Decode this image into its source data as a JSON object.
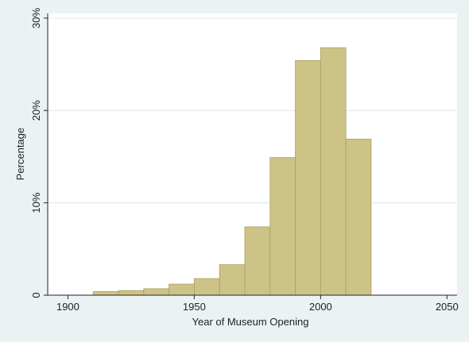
{
  "chart_data": {
    "type": "histogram",
    "xlabel": "Year of Museum Opening",
    "ylabel": "Percentage",
    "bins": [
      1910,
      1920,
      1930,
      1940,
      1950,
      1960,
      1970,
      1980,
      1990,
      2000,
      2010,
      2020
    ],
    "values": [
      0.4,
      0.5,
      0.7,
      1.2,
      1.8,
      3.3,
      7.4,
      14.9,
      25.4,
      26.8,
      16.9
    ],
    "color": "#cdc386",
    "edgecolor": "#a9a064",
    "xlim": [
      1892,
      2054
    ],
    "xticks": [
      1900,
      1950,
      2000,
      2050
    ],
    "ylim": [
      0,
      30.5
    ],
    "yticks": [
      0,
      {
        "value": 10,
        "label": "10%"
      },
      {
        "value": 20,
        "label": "20%"
      },
      {
        "value": 30,
        "label": "30%"
      }
    ],
    "grid": true
  }
}
